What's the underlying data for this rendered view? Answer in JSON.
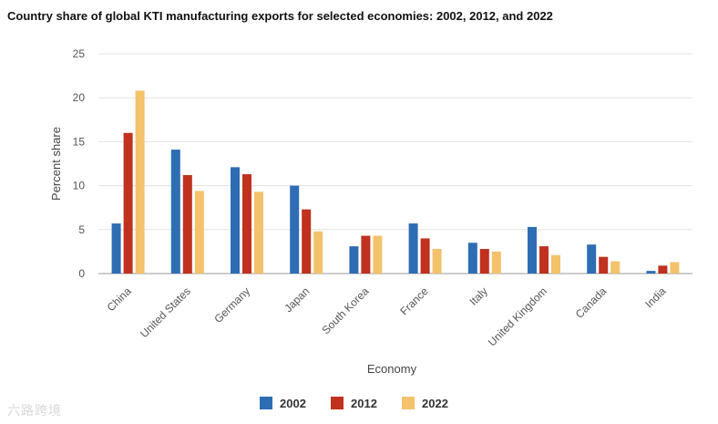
{
  "chart_data": {
    "type": "bar",
    "title": "Country share of global KTI manufacturing exports for selected economies: 2002, 2012, and 2022",
    "xlabel": "Economy",
    "ylabel": "Percent share",
    "ylim": [
      0,
      25
    ],
    "yticks": [
      0,
      5,
      10,
      15,
      20,
      25
    ],
    "grid": true,
    "legend_position": "bottom-center",
    "categories": [
      "China",
      "United States",
      "Germany",
      "Japan",
      "South Korea",
      "France",
      "Italy",
      "United Kingdom",
      "Canada",
      "India"
    ],
    "series": [
      {
        "name": "2002",
        "color": "#2e6db4",
        "values": [
          5.7,
          14.1,
          12.1,
          10.0,
          3.1,
          5.7,
          3.5,
          5.3,
          3.3,
          0.3
        ]
      },
      {
        "name": "2012",
        "color": "#c0311f",
        "values": [
          16.0,
          11.2,
          11.3,
          7.3,
          4.3,
          4.0,
          2.8,
          3.1,
          1.9,
          0.9
        ]
      },
      {
        "name": "2022",
        "color": "#f3c26b",
        "values": [
          20.8,
          9.4,
          9.3,
          4.8,
          4.3,
          2.8,
          2.5,
          2.1,
          1.4,
          1.3
        ]
      }
    ]
  },
  "watermark_text": "六路跨境"
}
